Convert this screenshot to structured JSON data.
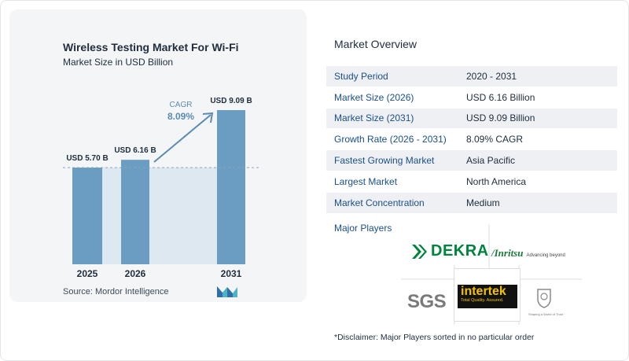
{
  "chart_data": {
    "type": "bar",
    "title": "Wireless Testing Market For Wi-Fi",
    "subtitle": "Market Size in USD Billion",
    "categories": [
      "2025",
      "2026",
      "2031"
    ],
    "values": [
      5.7,
      6.16,
      9.09
    ],
    "data_labels": [
      "USD 5.70 B",
      "USD 6.16 B",
      "USD 9.09 B"
    ],
    "cagr_label": "CAGR",
    "cagr_value": "8.09%",
    "colors": {
      "bar": "#6b9dc2",
      "bar_dark": "#5b8cb3",
      "area": "#dde8f1",
      "arrow": "#5b8cb3",
      "cagr_text": "#5b8cb3"
    },
    "ylim": [
      0,
      10
    ],
    "grid": false
  },
  "source": "Source:  Mordor Intelligence",
  "overview": {
    "title": "Market Overview",
    "rows": [
      {
        "label": "Study Period",
        "value": "2020 - 2031"
      },
      {
        "label": "Market Size (2026)",
        "value": "USD 6.16 Billion"
      },
      {
        "label": "Market Size (2031)",
        "value": "USD 9.09 Billion"
      },
      {
        "label": "Growth Rate (2026 - 2031)",
        "value": "8.09% CAGR"
      },
      {
        "label": "Fastest Growing Market",
        "value": "Asia Pacific"
      },
      {
        "label": "Largest Market",
        "value": "North America"
      },
      {
        "label": "Market Concentration",
        "value": "Medium"
      }
    ]
  },
  "players": {
    "title": "Major Players",
    "logos": {
      "dekra": "DEKRA",
      "anritsu": "/Inritsu",
      "anritsu_tag": "Advancing beyond",
      "sgs": "SGS",
      "intertek": "intertek",
      "intertek_tag": "Total Quality. Assured.",
      "bureau_veritas_tag": "Shaping a World of Trust"
    }
  },
  "disclaimer": "*Disclaimer: Major Players sorted in no particular order"
}
